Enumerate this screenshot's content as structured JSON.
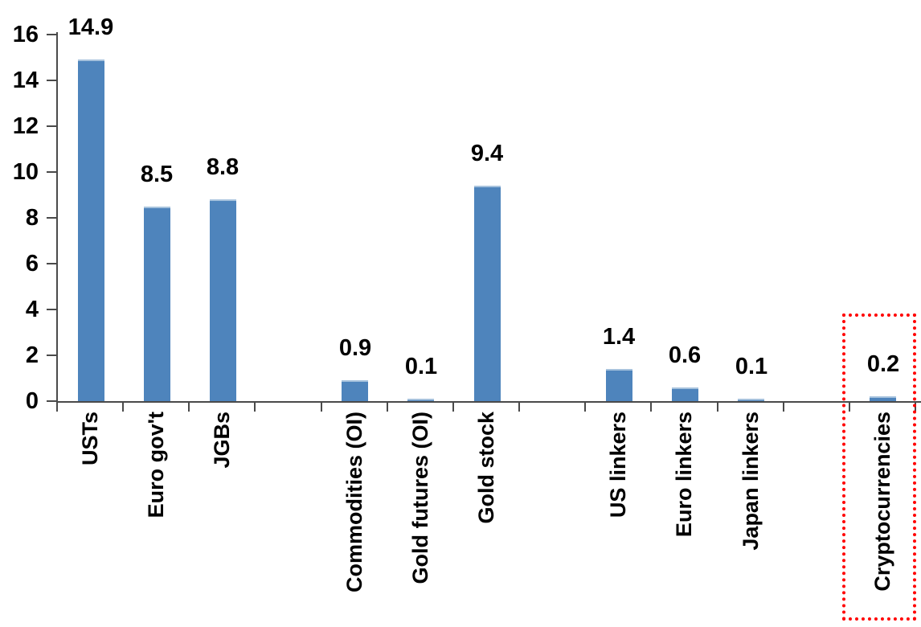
{
  "chart_data": {
    "type": "bar",
    "title": "",
    "grid": false,
    "legend": false,
    "num_slots": 13,
    "bar_color": "#4E84BC",
    "bar_top_edge_color": "#A6C2DD",
    "axis_color": "#4a4a4a",
    "text_color": "#000000",
    "y_axis": {
      "min": 0,
      "max": 16,
      "step": 2,
      "tick_labels": [
        "0",
        "2",
        "4",
        "6",
        "8",
        "10",
        "12",
        "14",
        "16"
      ]
    },
    "bars": [
      {
        "label": "USTs",
        "value": 14.9,
        "display": "14.9",
        "slot": 0,
        "highlighted": false
      },
      {
        "label": "Euro gov't",
        "value": 8.5,
        "display": "8.5",
        "slot": 1,
        "highlighted": false
      },
      {
        "label": "JGBs",
        "value": 8.8,
        "display": "8.8",
        "slot": 2,
        "highlighted": false
      },
      {
        "label": "Commodities (OI)",
        "value": 0.9,
        "display": "0.9",
        "slot": 4,
        "highlighted": false
      },
      {
        "label": "Gold futures (OI)",
        "value": 0.1,
        "display": "0.1",
        "slot": 5,
        "highlighted": false
      },
      {
        "label": "Gold stock",
        "value": 9.4,
        "display": "9.4",
        "slot": 6,
        "highlighted": false
      },
      {
        "label": "US linkers",
        "value": 1.4,
        "display": "1.4",
        "slot": 8,
        "highlighted": false
      },
      {
        "label": "Euro linkers",
        "value": 0.6,
        "display": "0.6",
        "slot": 9,
        "highlighted": false
      },
      {
        "label": "Japan linkers",
        "value": 0.1,
        "display": "0.1",
        "slot": 10,
        "highlighted": false
      },
      {
        "label": "Cryptocurrencies",
        "value": 0.2,
        "display": "0.2",
        "slot": 12,
        "highlighted": true
      }
    ],
    "highlight_box": {
      "around": "Cryptocurrencies",
      "color": "#FF0000",
      "style": "dotted"
    }
  }
}
